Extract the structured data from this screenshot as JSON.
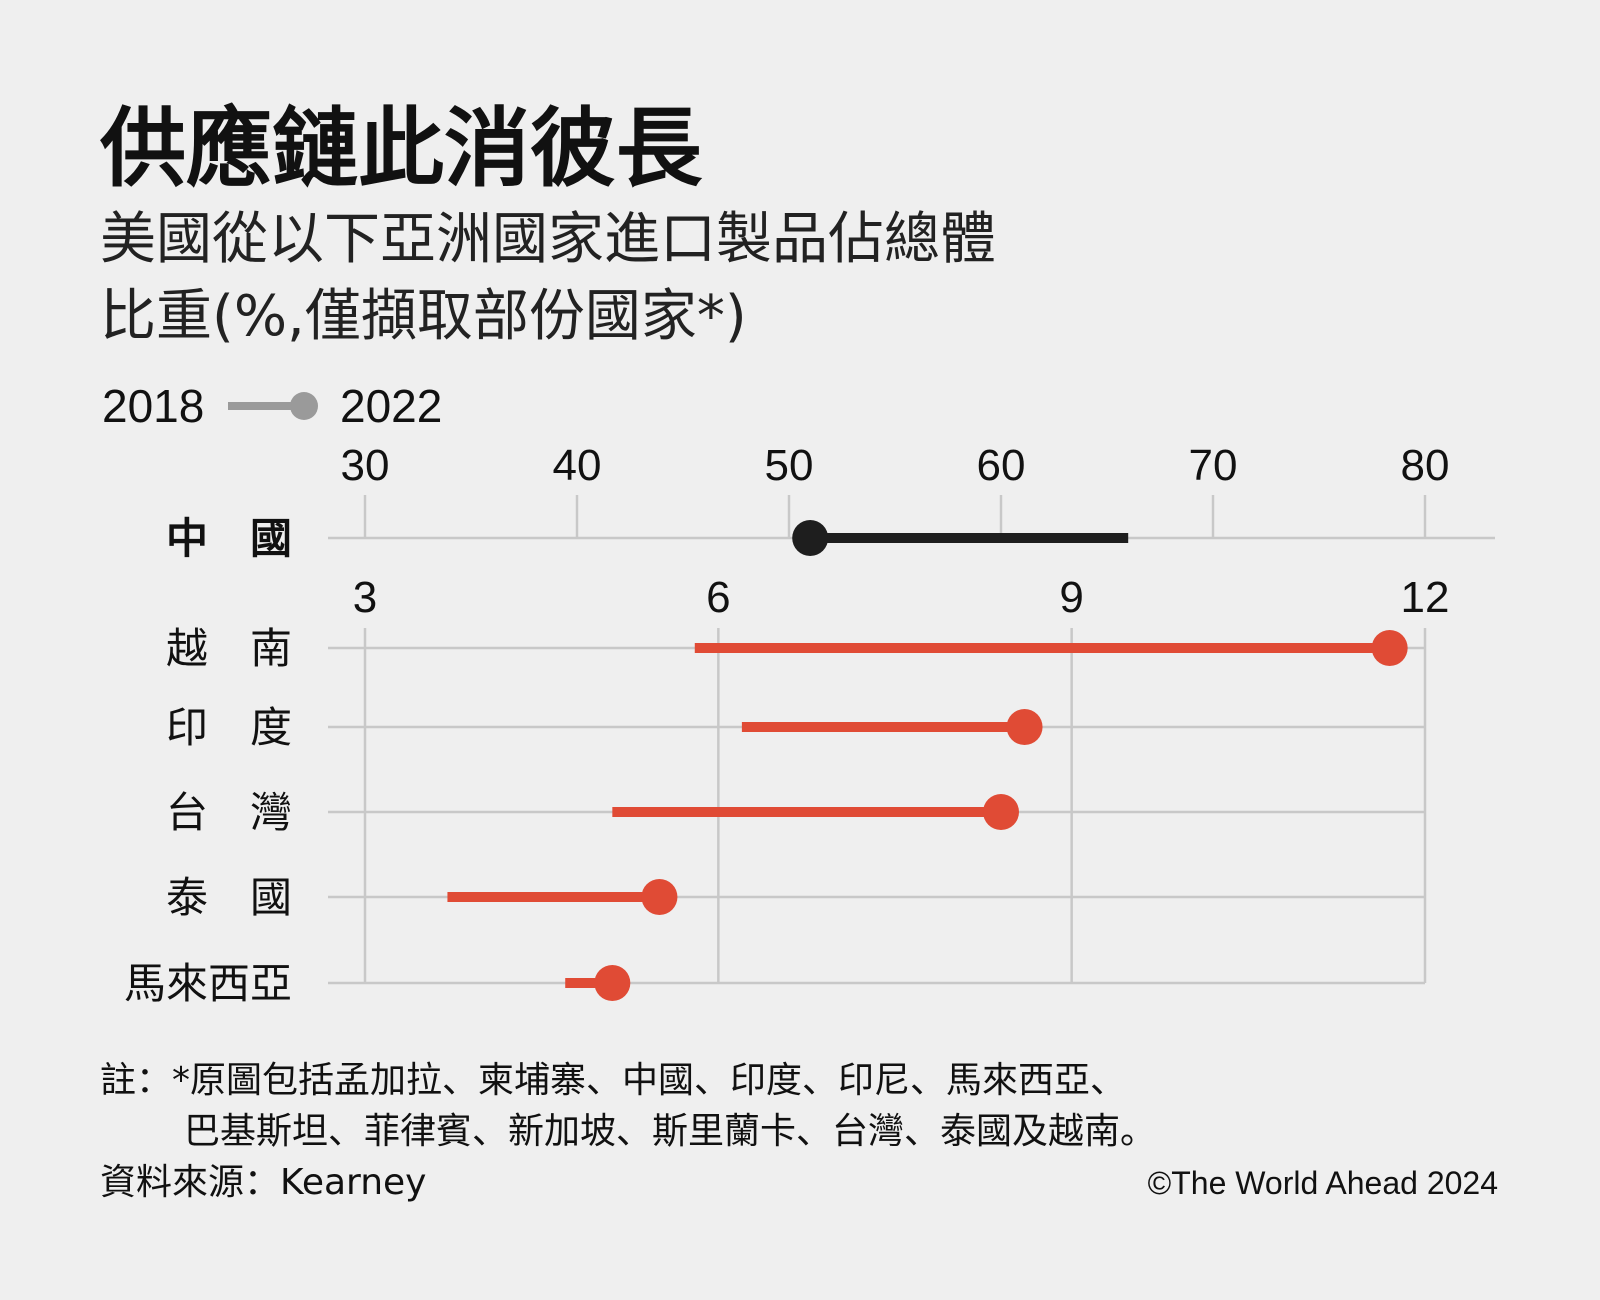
{
  "title": "供應鏈此消彼長",
  "subtitle_lines": [
    "美國從以下亞洲國家進口製品佔總體",
    "比重(%,僅擷取部份國家*)"
  ],
  "legend": {
    "start": "2018",
    "end": "2022"
  },
  "colors": {
    "china": "#1e1e1e",
    "others": "#e04b35",
    "legend": "#9a9a9a",
    "grid": "#c8c8c8",
    "background": "#efefef"
  },
  "chart_data": [
    {
      "type": "dumbbell",
      "xlim": [
        30,
        80
      ],
      "ticks": [
        "30",
        "40",
        "50",
        "60",
        "70",
        "80"
      ],
      "grid": true,
      "categories": [
        "中　國"
      ],
      "series": [
        {
          "name": "2018",
          "values": [
            66.0
          ]
        },
        {
          "name": "2022",
          "values": [
            51.0
          ]
        }
      ]
    },
    {
      "type": "dumbbell",
      "xlim": [
        3,
        12
      ],
      "ticks": [
        "3",
        "6",
        "9",
        "12"
      ],
      "grid": true,
      "categories": [
        "越　南",
        "印　度",
        "台　灣",
        "泰　國",
        "馬來西亞"
      ],
      "series": [
        {
          "name": "2018",
          "values": [
            5.8,
            6.2,
            5.1,
            3.7,
            4.7
          ]
        },
        {
          "name": "2022",
          "values": [
            11.7,
            8.6,
            8.4,
            5.5,
            5.1
          ]
        }
      ]
    }
  ],
  "notes": {
    "line1": "註：*原圖包括孟加拉、柬埔寨、中國、印度、印尼、馬來西亞、",
    "line2": "巴基斯坦、菲律賓、新加坡、斯里蘭卡、台灣、泰國及越南。",
    "source": "資料來源：Kearney",
    "credit": "©The World Ahead 2024"
  }
}
